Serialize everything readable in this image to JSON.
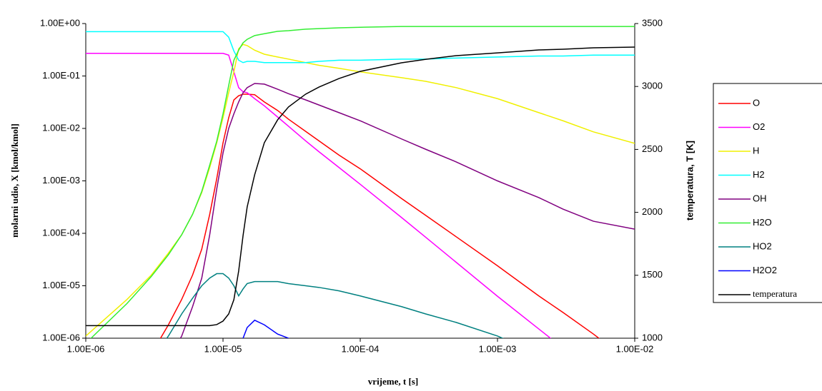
{
  "chart_data": {
    "type": "line",
    "x_label": "vrijeme, t [s]",
    "y_label": "molarni udio,  X  [kmol/kmol]",
    "y2_label": "temperatura,  T [K]",
    "xscale": "log",
    "yscale": "log",
    "xlim": [
      1e-06,
      0.01
    ],
    "ylim": [
      1e-06,
      1
    ],
    "y2lim": [
      1000,
      3500
    ],
    "xticks": [
      {
        "value": 1e-06,
        "label": "1.00E-06"
      },
      {
        "value": 1e-05,
        "label": "1.00E-05"
      },
      {
        "value": 0.0001,
        "label": "1.00E-04"
      },
      {
        "value": 0.001,
        "label": "1.00E-03"
      },
      {
        "value": 0.01,
        "label": "1.00E-02"
      }
    ],
    "yticks": [
      {
        "value": 1e-06,
        "label": "1.00E-06"
      },
      {
        "value": 1e-05,
        "label": "1.00E-05"
      },
      {
        "value": 0.0001,
        "label": "1.00E-04"
      },
      {
        "value": 0.001,
        "label": "1.00E-03"
      },
      {
        "value": 0.01,
        "label": "1.00E-02"
      },
      {
        "value": 0.1,
        "label": "1.00E-01"
      },
      {
        "value": 1,
        "label": "1.00E+00"
      }
    ],
    "y2ticks": [
      1000,
      1500,
      2000,
      2500,
      3000,
      3500
    ],
    "grid": false,
    "legend": "right",
    "x": [
      1e-06,
      2e-06,
      3e-06,
      4e-06,
      5e-06,
      6e-06,
      7e-06,
      8e-06,
      9e-06,
      1e-05,
      1.1e-05,
      1.2e-05,
      1.3e-05,
      1.4e-05,
      1.5e-05,
      1.7e-05,
      2e-05,
      2.5e-05,
      3e-05,
      4e-05,
      5e-05,
      7e-05,
      0.0001,
      0.0002,
      0.0003,
      0.0005,
      0.001,
      0.002,
      0.003,
      0.005,
      0.01
    ],
    "series": [
      {
        "name": "O",
        "color": "#ff0000",
        "values": [
          null,
          null,
          5e-07,
          1.8e-06,
          5.5e-06,
          1.6e-05,
          5e-05,
          0.00023,
          0.0011,
          0.0053,
          0.016,
          0.035,
          0.042,
          0.045,
          0.045,
          0.044,
          0.032,
          0.022,
          0.015,
          0.0088,
          0.0058,
          0.0031,
          0.0017,
          0.00046,
          0.00022,
          8.6e-05,
          2.4e-05,
          6.4e-06,
          3.1e-06,
          1.2e-06,
          3e-07
        ]
      },
      {
        "name": "O2",
        "color": "#ff00ff",
        "values": [
          0.27,
          0.27,
          0.27,
          0.27,
          0.27,
          0.27,
          0.27,
          0.27,
          0.27,
          0.27,
          0.25,
          0.12,
          0.06,
          0.05,
          0.048,
          0.037,
          0.027,
          0.0165,
          0.011,
          0.0058,
          0.0036,
          0.0018,
          0.00086,
          0.0002,
          8.4e-05,
          2.8e-05,
          6.3e-06,
          1.5e-06,
          6.5e-07,
          null,
          null
        ]
      },
      {
        "name": "H",
        "color": "#f0f000",
        "values": [
          1.1e-06,
          5.5e-06,
          1.6e-05,
          4.2e-05,
          9.4e-05,
          0.00023,
          0.0006,
          0.0018,
          0.0053,
          0.016,
          0.048,
          0.12,
          0.33,
          0.4,
          0.38,
          0.31,
          0.26,
          0.23,
          0.21,
          0.18,
          0.16,
          0.14,
          0.12,
          0.093,
          0.079,
          0.06,
          0.037,
          0.02,
          0.014,
          0.0086,
          0.0052
        ]
      },
      {
        "name": "H2",
        "color": "#00ffff",
        "values": [
          0.7,
          0.7,
          0.7,
          0.7,
          0.7,
          0.7,
          0.7,
          0.7,
          0.7,
          0.7,
          0.55,
          0.3,
          0.2,
          0.18,
          0.19,
          0.19,
          0.18,
          0.18,
          0.18,
          0.18,
          0.19,
          0.2,
          0.2,
          0.21,
          0.21,
          0.22,
          0.23,
          0.24,
          0.24,
          0.25,
          0.25
        ]
      },
      {
        "name": "OH",
        "color": "#800080",
        "values": [
          null,
          null,
          null,
          4e-07,
          1.1e-06,
          4e-06,
          1.4e-05,
          9.4e-05,
          0.0007,
          0.0034,
          0.01,
          0.019,
          0.032,
          0.048,
          0.06,
          0.072,
          0.07,
          0.056,
          0.046,
          0.035,
          0.028,
          0.02,
          0.014,
          0.0063,
          0.004,
          0.0023,
          0.001,
          0.00048,
          0.00029,
          0.00017,
          0.00012
        ]
      },
      {
        "name": "H2O",
        "color": "#33ee33",
        "values": [
          8e-07,
          4.6e-06,
          1.5e-05,
          3.9e-05,
          9.4e-05,
          0.00023,
          0.00063,
          0.002,
          0.0057,
          0.019,
          0.066,
          0.2,
          0.31,
          0.43,
          0.5,
          0.59,
          0.64,
          0.71,
          0.73,
          0.78,
          0.8,
          0.83,
          0.85,
          0.88,
          0.88,
          0.88,
          0.88,
          0.88,
          0.88,
          0.88,
          0.88
        ]
      },
      {
        "name": "HO2",
        "color": "#008080",
        "values": [
          null,
          null,
          4e-07,
          1.1e-06,
          2.9e-06,
          5.8e-06,
          1e-05,
          1.4e-05,
          1.7e-05,
          1.7e-05,
          1.4e-05,
          1e-05,
          6.4e-06,
          8.7e-06,
          1.1e-05,
          1.2e-05,
          1.2e-05,
          1.2e-05,
          1.1e-05,
          1e-05,
          9.3e-06,
          8e-06,
          6.4e-06,
          4e-06,
          2.9e-06,
          2e-06,
          1.1e-06,
          5e-07,
          null,
          null,
          null
        ]
      },
      {
        "name": "H2O2",
        "color": "#0000ff",
        "values": [
          null,
          null,
          null,
          null,
          null,
          null,
          null,
          null,
          null,
          null,
          null,
          null,
          5e-07,
          1e-06,
          1.6e-06,
          2.2e-06,
          1.8e-06,
          1.2e-06,
          1e-06,
          6e-07,
          null,
          null,
          null,
          null,
          null,
          null,
          null,
          null,
          null,
          null,
          null
        ]
      },
      {
        "name": "temperatura",
        "color": "#000000",
        "axis": "y2",
        "values": [
          1100,
          1100,
          1100,
          1100,
          1100,
          1100,
          1100,
          1100,
          1108,
          1136,
          1193,
          1306,
          1533,
          1816,
          2043,
          2298,
          2553,
          2735,
          2837,
          2939,
          2995,
          3063,
          3120,
          3188,
          3216,
          3245,
          3267,
          3290,
          3296,
          3307,
          3313
        ]
      }
    ]
  }
}
